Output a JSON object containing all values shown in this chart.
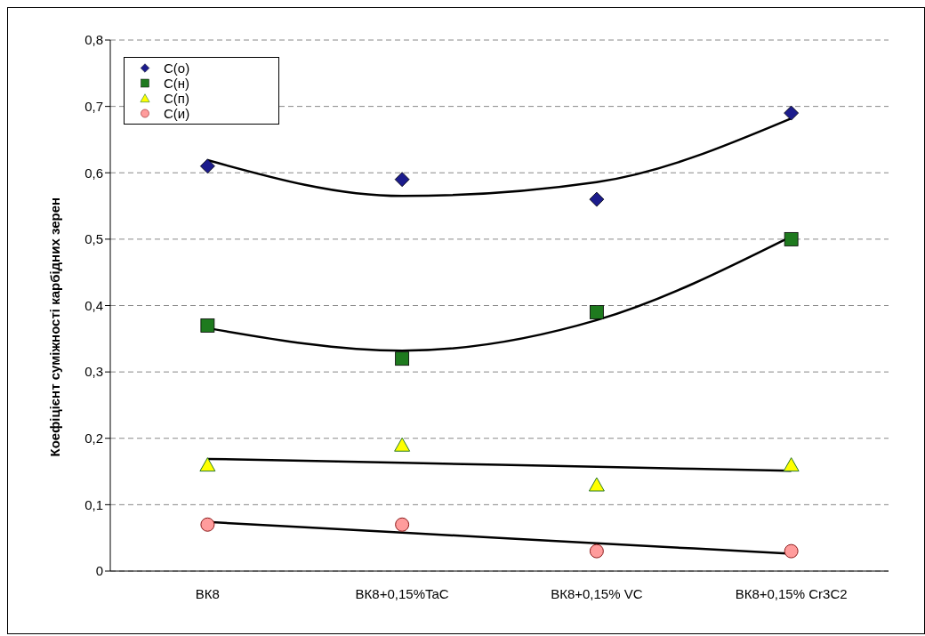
{
  "chart_data": {
    "type": "scatter",
    "ylabel": "Коефіцієнт суміжності карбідних зерен",
    "categories": [
      "ВК8",
      "ВК8+0,15%TaC",
      "ВК8+0,15% VC",
      "ВК8+0,15% Cr3C2"
    ],
    "series": [
      {
        "name": "С(о)",
        "color": "#1c1c8c",
        "marker": "diamond",
        "values": [
          0.61,
          0.59,
          0.56,
          0.69
        ]
      },
      {
        "name": "С(н)",
        "color": "#1e7a1e",
        "marker": "square",
        "values": [
          0.37,
          0.32,
          0.39,
          0.5
        ]
      },
      {
        "name": "С(п)",
        "color": "#ffff00",
        "marker": "triangle",
        "values": [
          0.16,
          0.19,
          0.13,
          0.16
        ]
      },
      {
        "name": "С(и)",
        "color": "#ff9c9c",
        "marker": "circle",
        "values": [
          0.07,
          0.07,
          0.03,
          0.03
        ]
      },
      {
        "type": "line",
        "color": "#000000",
        "marker": "none",
        "values": [
          0.619,
          0.565,
          0.586,
          0.682
        ]
      },
      {
        "type": "line",
        "color": "#000000",
        "marker": "none",
        "values": [
          0.366,
          0.332,
          0.378,
          0.504
        ]
      },
      {
        "type": "line",
        "color": "#000000",
        "marker": "none",
        "values": [
          0.169,
          0.163,
          0.157,
          0.151
        ]
      },
      {
        "type": "line",
        "color": "#000000",
        "marker": "none",
        "values": [
          0.074,
          0.058,
          0.042,
          0.026
        ]
      }
    ],
    "ylim": [
      0,
      0.8
    ],
    "yticks": [
      0,
      {
        "value": 0.1,
        "label": "0,1"
      },
      {
        "value": 0.2,
        "label": "0,2"
      },
      {
        "value": 0.3,
        "label": "0,3"
      },
      {
        "value": 0.4,
        "label": "0,4"
      },
      {
        "value": 0.5,
        "label": "0,5"
      },
      {
        "value": 0.6,
        "label": "0,6"
      },
      {
        "value": 0.7,
        "label": "0,7"
      },
      {
        "value": 0.8,
        "label": "0,8"
      }
    ],
    "grid": "y",
    "legend": "top left"
  }
}
